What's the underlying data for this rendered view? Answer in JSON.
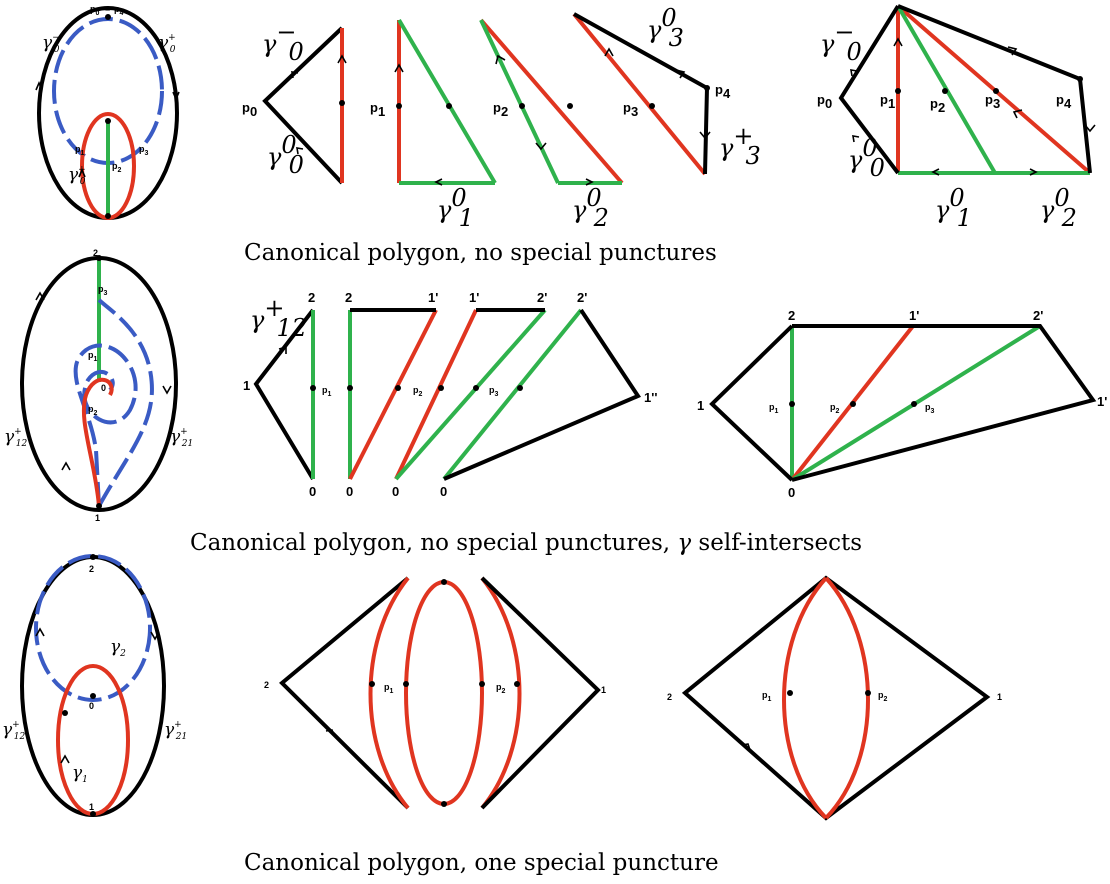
{
  "colors": {
    "black": "#000000",
    "red": "#e03520",
    "green": "#2fb24c",
    "blue": "#3a5bc4"
  },
  "captions": {
    "row1": "Canonical polygon, no special punctures",
    "row2_text": "Canonical polygon, no special punctures, ",
    "row2_gamma": "γ",
    "row2_tail": " self-intersects",
    "row3": "Canonical polygon, one special puncture"
  },
  "labels": {
    "p0": "p",
    "p0_sub": "0",
    "p1": "p",
    "p1_sub": "1",
    "p2": "p",
    "p2_sub": "2",
    "p3": "p",
    "p3_sub": "3",
    "p4": "p",
    "p4_sub": "4",
    "gamma": "γ",
    "sup_minus": "−",
    "sup_zero": "0",
    "sup_plus": "+",
    "sub0": "0",
    "sub1": "1",
    "sub2": "2",
    "sub3": "3",
    "sub12": "12",
    "sub21": "21",
    "v0": "0",
    "v1": "1",
    "v2": "2",
    "v1p": "1'",
    "v2p": "2'",
    "v1pp": "1''",
    "p_top0": "p",
    "p_top0_sub": "0",
    "eq": "=",
    "p_top4": "p",
    "p_top4_sub": "4"
  }
}
